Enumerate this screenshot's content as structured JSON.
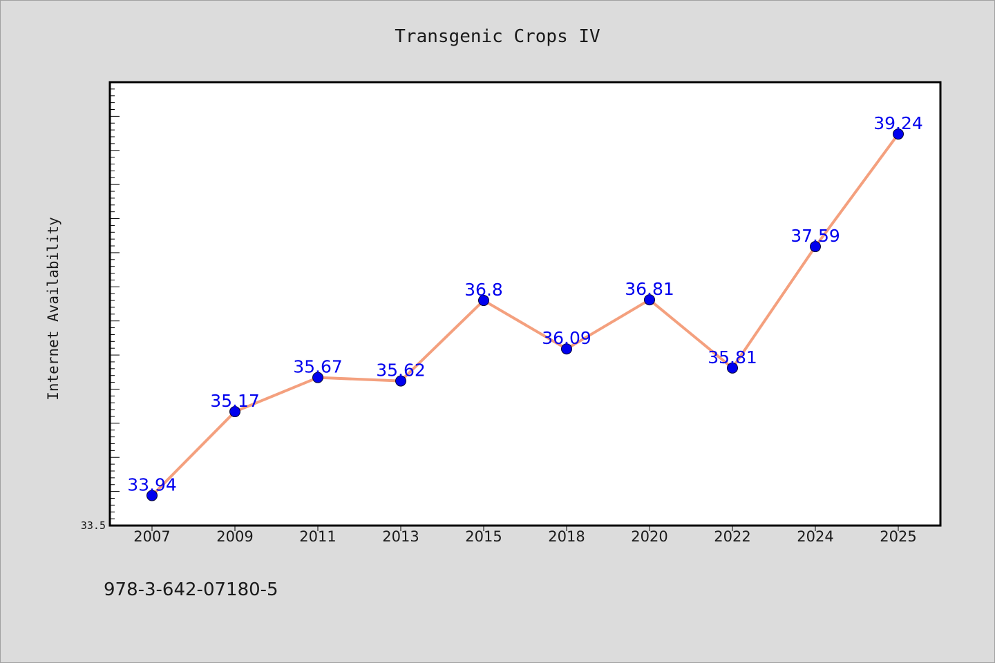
{
  "chart_data": {
    "type": "line",
    "title": "Transgenic Crops IV",
    "xlabel": "",
    "ylabel": "Internet Availability",
    "categories": [
      "2007",
      "2009",
      "2011",
      "2013",
      "2015",
      "2018",
      "2020",
      "2022",
      "2024",
      "2025"
    ],
    "series": [
      {
        "values": [
          33.94,
          35.17,
          35.67,
          35.62,
          36.8,
          36.09,
          36.81,
          35.81,
          37.59,
          39.24
        ]
      }
    ],
    "data_labels": [
      "33.94",
      "35.17",
      "35.67",
      "35.62",
      "36.8",
      "36.09",
      "36.81",
      "35.81",
      "37.59",
      "39.24"
    ],
    "ylim": [
      33.5,
      40.0
    ],
    "yticks_labeled": [
      "33.5"
    ],
    "line_color": "#f4a07e",
    "marker_color": "#0000ee",
    "label_color": "#0000ee",
    "grid": false,
    "legend": "none"
  },
  "footer": {
    "isbn": "978-3-642-07180-5"
  }
}
